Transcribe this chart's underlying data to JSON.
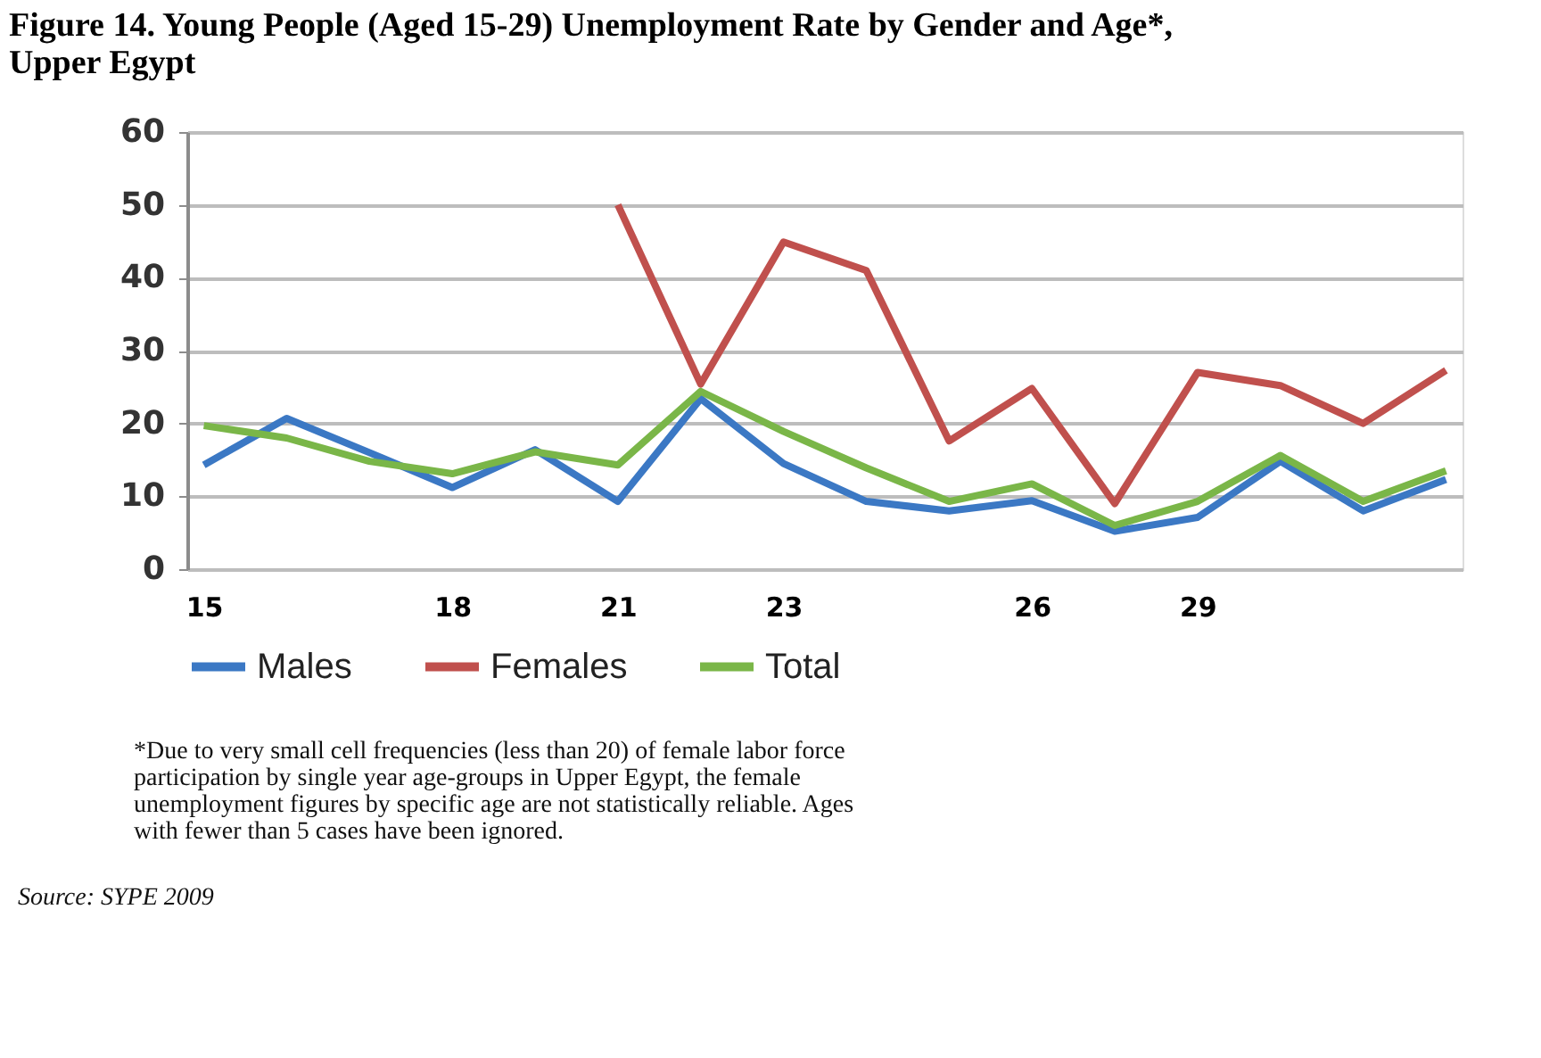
{
  "chart_data": {
    "type": "line",
    "title": "Figure 14.  Young People (Aged 15-29) Unemployment Rate by Gender and Age*, Upper Egypt",
    "categories": [
      "15",
      null,
      null,
      "18",
      null,
      "21",
      null,
      "23",
      null,
      null,
      "26",
      null,
      "29",
      null,
      null,
      null
    ],
    "series": [
      {
        "name": "Males",
        "color": "#3b78c4",
        "values": [
          14.3,
          20.7,
          16,
          11.2,
          16.4,
          9.3,
          23.4,
          14.5,
          9.3,
          8,
          9.4,
          5.2,
          7.1,
          14.8,
          8,
          12.3
        ]
      },
      {
        "name": "Females",
        "color": "#c0504d",
        "values": [
          null,
          null,
          null,
          null,
          null,
          50,
          25.4,
          44.9,
          41,
          17.6,
          24.8,
          9,
          27,
          25.2,
          20,
          27.3
        ]
      },
      {
        "name": "Total",
        "color": "#7ab648",
        "values": [
          19.7,
          18,
          14.8,
          13.1,
          16.1,
          14.3,
          24.4,
          18.9,
          13.9,
          9.3,
          11.7,
          6,
          9.3,
          15.6,
          9.3,
          13.5
        ]
      }
    ],
    "ylim": [
      0,
      60
    ],
    "yticks": [
      0,
      10,
      20,
      30,
      40,
      50,
      60
    ],
    "grid": "y",
    "legend": "bottom",
    "marker": "none",
    "line_style": "solid",
    "annotations": [
      "*Due to very small cell frequencies (less than 20) of female labor force participation by single year age-groups in Upper Egypt, the female unemployment figures by specific age are not statistically reliable. Ages with fewer than 5 cases have been ignored.",
      "Source: SYPE 2009"
    ]
  }
}
